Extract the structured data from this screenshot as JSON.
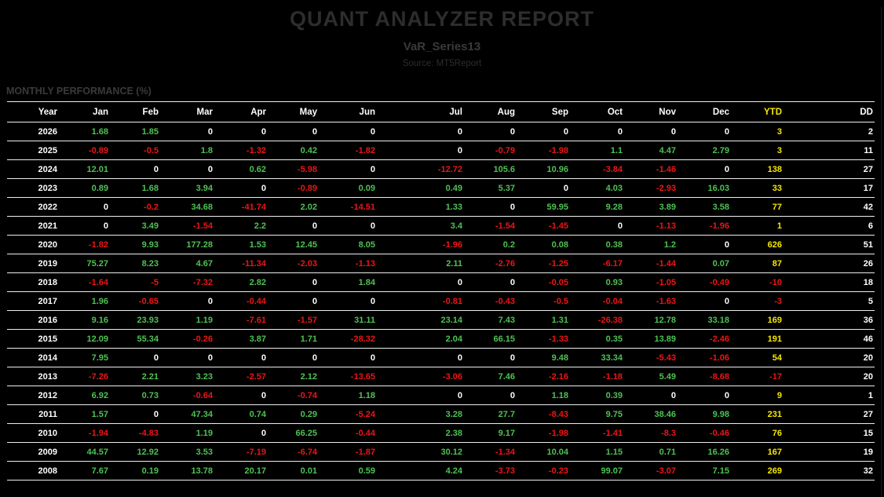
{
  "report": {
    "title": "QUANT ANALYZER REPORT",
    "subtitle": "VaR_Series13",
    "source": "Source: MT5Report",
    "section_title": "MONTHLY PERFORMANCE (%)"
  },
  "colors": {
    "positive": "#4ec253",
    "negative": "#ee1515",
    "zero": "#ffffff",
    "ytd_positive": "#f7e800",
    "ytd_negative": "#ee1515",
    "dd": "#ffffff",
    "header_text": "#ffffff",
    "header_ytd": "#f7e800",
    "row_line": "#ededed",
    "background": "#000000"
  },
  "table": {
    "columns": [
      "Year",
      "Jan",
      "Feb",
      "Mar",
      "Apr",
      "May",
      "Jun",
      "Jul",
      "Aug",
      "Sep",
      "Oct",
      "Nov",
      "Dec",
      "YTD",
      "DD"
    ],
    "rows": [
      {
        "year": "2026",
        "months": [
          "1.68",
          "1.85",
          "0",
          "0",
          "0",
          "0",
          "0",
          "0",
          "0",
          "0",
          "0",
          "0"
        ],
        "ytd": "3",
        "dd": "2"
      },
      {
        "year": "2025",
        "months": [
          "-0.89",
          "-0.5",
          "1.8",
          "-1.32",
          "0.42",
          "-1.82",
          "0",
          "-0.79",
          "-1.98",
          "1.1",
          "4.47",
          "2.79"
        ],
        "ytd": "3",
        "dd": "11"
      },
      {
        "year": "2024",
        "months": [
          "12.01",
          "0",
          "0",
          "0.62",
          "-5.98",
          "0",
          "-12.72",
          "105.6",
          "10.96",
          "-3.84",
          "-1.46",
          "0"
        ],
        "ytd": "138",
        "dd": "27"
      },
      {
        "year": "2023",
        "months": [
          "0.89",
          "1.68",
          "3.94",
          "0",
          "-0.89",
          "0.09",
          "0.49",
          "5.37",
          "0",
          "4.03",
          "-2.93",
          "16.03"
        ],
        "ytd": "33",
        "dd": "17"
      },
      {
        "year": "2022",
        "months": [
          "0",
          "-0.2",
          "34.68",
          "-41.74",
          "2.02",
          "-14.51",
          "1.33",
          "0",
          "59.95",
          "9.28",
          "3.89",
          "3.58"
        ],
        "ytd": "77",
        "dd": "42"
      },
      {
        "year": "2021",
        "months": [
          "0",
          "3.49",
          "-1.54",
          "2.2",
          "0",
          "0",
          "3.4",
          "-1.54",
          "-1.45",
          "0",
          "-1.13",
          "-1.96"
        ],
        "ytd": "1",
        "dd": "6"
      },
      {
        "year": "2020",
        "months": [
          "-1.82",
          "9.93",
          "177.28",
          "1.53",
          "12.45",
          "8.05",
          "-1.96",
          "0.2",
          "0.08",
          "0.38",
          "1.2",
          "0"
        ],
        "ytd": "626",
        "dd": "51"
      },
      {
        "year": "2019",
        "months": [
          "75.27",
          "8.23",
          "4.67",
          "-11.34",
          "-2.03",
          "-1.13",
          "2.11",
          "-2.76",
          "-1.25",
          "-6.17",
          "-1.44",
          "0.07"
        ],
        "ytd": "87",
        "dd": "26"
      },
      {
        "year": "2018",
        "months": [
          "-1.64",
          "-5",
          "-7.32",
          "2.82",
          "0",
          "1.84",
          "0",
          "0",
          "-0.05",
          "0.93",
          "-1.05",
          "-0.49"
        ],
        "ytd": "-10",
        "dd": "18"
      },
      {
        "year": "2017",
        "months": [
          "1.96",
          "-0.65",
          "0",
          "-0.44",
          "0",
          "0",
          "-0.81",
          "-0.43",
          "-0.5",
          "-0.04",
          "-1.63",
          "0"
        ],
        "ytd": "-3",
        "dd": "5"
      },
      {
        "year": "2016",
        "months": [
          "9.16",
          "23.93",
          "1.19",
          "-7.61",
          "-1.57",
          "31.11",
          "23.14",
          "7.43",
          "1.31",
          "-26.38",
          "12.78",
          "33.18"
        ],
        "ytd": "169",
        "dd": "36"
      },
      {
        "year": "2015",
        "months": [
          "12.09",
          "55.34",
          "-0.26",
          "3.87",
          "1.71",
          "-28.32",
          "2.04",
          "66.15",
          "-1.33",
          "0.35",
          "13.89",
          "-2.46"
        ],
        "ytd": "191",
        "dd": "46"
      },
      {
        "year": "2014",
        "months": [
          "7.95",
          "0",
          "0",
          "0",
          "0",
          "0",
          "0",
          "0",
          "9.48",
          "33.34",
          "-5.43",
          "-1.06"
        ],
        "ytd": "54",
        "dd": "20"
      },
      {
        "year": "2013",
        "months": [
          "-7.26",
          "2.21",
          "3.23",
          "-2.57",
          "2.12",
          "-13.65",
          "-3.06",
          "7.46",
          "-2.16",
          "-1.18",
          "5.49",
          "-8.68"
        ],
        "ytd": "-17",
        "dd": "20"
      },
      {
        "year": "2012",
        "months": [
          "6.92",
          "0.73",
          "-0.64",
          "0",
          "-0.74",
          "1.18",
          "0",
          "0",
          "1.18",
          "0.39",
          "0",
          "0"
        ],
        "ytd": "9",
        "dd": "1"
      },
      {
        "year": "2011",
        "months": [
          "1.57",
          "0",
          "47.34",
          "0.74",
          "0.29",
          "-5.24",
          "3.28",
          "27.7",
          "-8.43",
          "9.75",
          "38.46",
          "9.98"
        ],
        "ytd": "231",
        "dd": "27"
      },
      {
        "year": "2010",
        "months": [
          "-1.94",
          "-4.83",
          "1.19",
          "0",
          "66.25",
          "-0.44",
          "2.38",
          "9.17",
          "-1.98",
          "-1.41",
          "-8.3",
          "-0.46"
        ],
        "ytd": "76",
        "dd": "15"
      },
      {
        "year": "2009",
        "months": [
          "44.57",
          "12.92",
          "3.53",
          "-7.19",
          "-6.74",
          "-1.87",
          "30.12",
          "-1.34",
          "10.04",
          "1.15",
          "0.71",
          "16.26"
        ],
        "ytd": "167",
        "dd": "19"
      },
      {
        "year": "2008",
        "months": [
          "7.67",
          "0.19",
          "13.78",
          "20.17",
          "0.01",
          "0.59",
          "4.24",
          "-3.73",
          "-0.23",
          "99.07",
          "-3.07",
          "7.15"
        ],
        "ytd": "269",
        "dd": "32"
      }
    ]
  }
}
